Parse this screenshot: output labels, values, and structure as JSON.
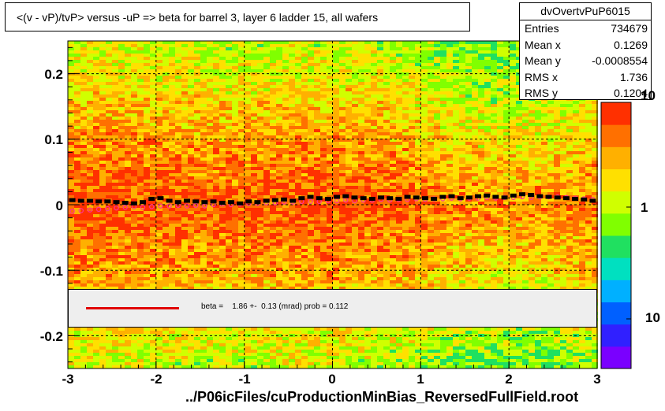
{
  "title": "<(v - vP)/tvP>  versus  -uP => beta for barrel 3, layer 6 ladder 15, all wafers",
  "stats": {
    "name": "dvOvertvPuP6015",
    "rows": [
      {
        "label": "Entries",
        "value": "734679"
      },
      {
        "label": "Mean x",
        "value": "0.1269"
      },
      {
        "label": "Mean y",
        "value": "-0.0008554"
      },
      {
        "label": "RMS x",
        "value": "1.736"
      },
      {
        "label": "RMS y",
        "value": "0.1204"
      }
    ]
  },
  "fit": {
    "text": "beta =    1.86 +-  0.13 (mrad) prob = 0.112",
    "line_color": "#e00000"
  },
  "chart_data": {
    "type": "heatmap",
    "title": "<(v - vP)/tvP>  versus  -uP => beta for barrel 3, layer 6 ladder 15, all wafers",
    "xlabel": "../P06icFiles/cuProductionMinBias_ReversedFullField.root",
    "ylabel": "",
    "xlim": [
      -3,
      3
    ],
    "ylim": [
      -0.25,
      0.25
    ],
    "x_ticks": [
      "-3",
      "-2",
      "-1",
      "0",
      "1",
      "2",
      "3"
    ],
    "y_ticks": [
      "-0.2",
      "-0.1",
      "0",
      "0.1",
      "0.2"
    ],
    "z_ticks": [
      "10",
      "1",
      "10"
    ],
    "grid": true,
    "colors": {
      "palette": [
        "#7a00ff",
        "#3020ff",
        "#0060ff",
        "#00b0ff",
        "#00e0c0",
        "#20e060",
        "#80ff00",
        "#d0ff00",
        "#ffe000",
        "#ffb000",
        "#ff7000",
        "#ff3000"
      ],
      "profile_black": "#000000",
      "profile_magenta": "#ff3399",
      "fit_line": "#e00000"
    },
    "series": [
      {
        "marker": "black",
        "x": [
          -2.95,
          -2.85,
          -2.75,
          -2.65,
          -2.55,
          -2.45,
          -2.35,
          -2.25,
          -2.15,
          -2.05,
          -1.95,
          -1.85,
          -1.75,
          -1.65,
          -1.55,
          -1.45,
          -1.35,
          -1.25,
          -1.15,
          -1.05,
          -0.95,
          -0.85,
          -0.75,
          -0.65,
          -0.55,
          -0.45,
          -0.35,
          -0.25,
          -0.15,
          -0.05,
          0.05,
          0.15,
          0.25,
          0.35,
          0.45,
          0.55,
          0.65,
          0.75,
          0.85,
          0.95,
          1.05,
          1.15,
          1.25,
          1.35,
          1.45,
          1.55,
          1.65,
          1.75,
          1.85,
          1.95,
          2.05,
          2.15,
          2.25,
          2.35,
          2.45,
          2.55,
          2.65,
          2.75,
          2.85,
          2.95
        ],
        "y": [
          0.007,
          0.006,
          0.006,
          0.005,
          0.005,
          0.004,
          0.003,
          0.002,
          0.004,
          0.009,
          0.01,
          0.006,
          0.004,
          0.006,
          0.005,
          0.004,
          0.005,
          0.003,
          0.004,
          0.002,
          0.005,
          0.004,
          0.006,
          0.007,
          0.008,
          0.006,
          0.01,
          0.012,
          0.01,
          0.009,
          0.012,
          0.013,
          0.011,
          0.01,
          0.009,
          0.011,
          0.01,
          0.009,
          0.012,
          0.011,
          0.01,
          0.009,
          0.012,
          0.013,
          0.01,
          0.011,
          0.013,
          0.014,
          0.012,
          0.011,
          0.014,
          0.016,
          0.015,
          0.013,
          0.012,
          0.011,
          0.01,
          0.009,
          0.008,
          0.006
        ]
      },
      {
        "marker": "magenta",
        "x": [
          -2.95,
          -2.85,
          -2.75,
          -2.65,
          -2.55,
          -2.45,
          -2.35,
          -2.25,
          -2.15,
          -2.05,
          -1.95,
          -1.85,
          -1.75,
          -1.65,
          -1.55,
          -1.45,
          -1.35,
          -1.25,
          -1.15,
          -1.05,
          -0.95,
          -0.85,
          -0.75,
          -0.65,
          -0.55,
          -0.45,
          -0.35,
          -0.25,
          -0.15,
          -0.05,
          0.05,
          0.15,
          0.25,
          0.35,
          0.45,
          0.55,
          0.65,
          0.75,
          0.85,
          0.95,
          1.05,
          1.15,
          1.25,
          1.35,
          1.45,
          1.55,
          1.65,
          1.75,
          1.85,
          1.95,
          2.05,
          2.15,
          2.25,
          2.35,
          2.45,
          2.55,
          2.65,
          2.75,
          2.85,
          2.95
        ],
        "y": [
          -0.01,
          -0.009,
          -0.008,
          -0.007,
          -0.006,
          -0.005,
          -0.004,
          -0.003,
          -0.004,
          -0.003,
          -0.002,
          -0.002,
          -0.001,
          -0.002,
          -0.001,
          -0.002,
          0.0,
          0.001,
          0.0,
          0.001,
          0.002,
          0.002,
          0.003,
          0.003,
          0.004,
          0.004,
          0.005,
          0.005,
          0.005,
          0.006,
          0.006,
          0.007,
          0.006,
          0.007,
          0.007,
          0.008,
          0.007,
          0.008,
          0.008,
          0.009,
          0.008,
          0.009,
          0.009,
          0.01,
          0.009,
          0.01,
          0.01,
          0.011,
          0.01,
          0.011,
          0.011,
          0.012,
          0.011,
          0.012,
          0.012,
          0.012,
          0.011,
          0.01,
          0.009,
          0.008
        ]
      }
    ]
  }
}
